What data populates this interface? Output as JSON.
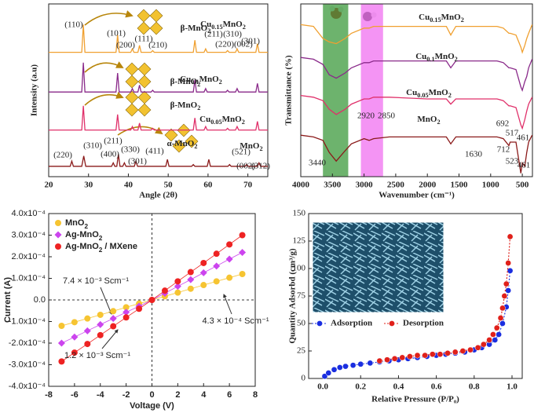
{
  "chart_data": [
    {
      "type": "line",
      "x_label": "Angle (2θ)",
      "y_label": "Intensity (a.u)",
      "xlim": [
        20,
        75
      ],
      "xticks": [
        20,
        30,
        40,
        50,
        60,
        70
      ],
      "ylim": [
        0,
        100
      ],
      "series": [
        {
          "name": "MnO2",
          "color": "#8b1a1a",
          "x": [
            20,
            25.4,
            25.8,
            26.2,
            28.3,
            28.8,
            29.3,
            35.8,
            36.2,
            36.6,
            37.1,
            37.5,
            37.9,
            38.6,
            39,
            39.4,
            41.5,
            41.9,
            42.3,
            49.4,
            49.8,
            50.2,
            55.9,
            56.3,
            56.7,
            59.8,
            60.2,
            60.6,
            65,
            65.4,
            65.8,
            69.3,
            69.7,
            70.1,
            72.4,
            72.8,
            73.2,
            75
          ],
          "values": [
            6,
            6,
            9,
            6,
            6,
            12,
            6,
            6,
            8,
            6,
            6,
            13,
            6,
            6,
            8,
            6,
            6,
            9,
            6,
            6,
            10,
            6,
            6,
            7,
            6,
            6,
            10,
            6,
            6,
            7,
            6,
            6,
            7,
            6,
            6,
            8,
            6,
            6
          ]
        },
        {
          "name": "Cu0.05MnO2",
          "color": "#e0306a",
          "x": [
            20,
            28.3,
            28.7,
            29.1,
            36.9,
            37.3,
            37.7,
            40.6,
            41,
            41.4,
            42.4,
            42.8,
            43.2,
            45.7,
            46.1,
            46.5,
            56.3,
            56.7,
            57.1,
            59,
            59.4,
            59.8,
            64.5,
            64.9,
            65.3,
            66.9,
            67.3,
            67.7,
            72,
            72.4,
            72.8,
            75
          ],
          "values": [
            27,
            27,
            41,
            27,
            27,
            36,
            27,
            27,
            29,
            27,
            27,
            31,
            27,
            27,
            28,
            27,
            27,
            34,
            27,
            27,
            29,
            27,
            27,
            28,
            27,
            27,
            29,
            27,
            27,
            32,
            27,
            27
          ]
        },
        {
          "name": "Cu0.1MnO2",
          "color": "#8a2a8a",
          "x": [
            20,
            28.3,
            28.7,
            29.1,
            36.9,
            37.3,
            37.7,
            40.6,
            41,
            41.4,
            42.4,
            42.8,
            43.2,
            45.7,
            46.1,
            46.5,
            56.3,
            56.7,
            57.1,
            59,
            59.4,
            59.8,
            64.5,
            64.9,
            65.3,
            66.9,
            67.3,
            67.7,
            72,
            72.4,
            72.8,
            75
          ],
          "values": [
            49,
            49,
            66,
            49,
            49,
            60,
            49,
            49,
            51,
            49,
            49,
            53,
            49,
            49,
            50,
            49,
            49,
            56,
            49,
            49,
            51,
            49,
            49,
            50,
            49,
            49,
            51,
            49,
            49,
            54,
            49,
            49
          ]
        },
        {
          "name": "Cu0.15MnO2",
          "color": "#f0a030",
          "x": [
            20,
            28.3,
            28.7,
            29.1,
            36.9,
            37.3,
            37.7,
            40.6,
            41,
            41.4,
            42.4,
            42.8,
            43.2,
            45.7,
            46.1,
            46.5,
            56.3,
            56.7,
            57.1,
            59,
            59.4,
            59.8,
            64.5,
            64.9,
            65.3,
            66.9,
            67.3,
            67.7,
            72,
            72.4,
            72.8,
            75
          ],
          "values": [
            72,
            72,
            88,
            72,
            72,
            82,
            72,
            72,
            74,
            72,
            72,
            76,
            72,
            72,
            73,
            72,
            72,
            79,
            72,
            72,
            74,
            72,
            72,
            73,
            72,
            72,
            74,
            72,
            72,
            77,
            72,
            72
          ]
        }
      ],
      "peak_labels": [
        "(110)",
        "(101)",
        "(200)",
        "(111)",
        "(210)",
        "(211)",
        "(310)",
        "(220)(002)",
        "(301)",
        "(310)",
        "(220)",
        "(211)",
        "(400)",
        "(330)",
        "(301)",
        "(411)",
        "(521)",
        "(002)",
        "(312)"
      ],
      "annotations": [
        {
          "text": "β-MnO2"
        },
        {
          "text": "β-MnO2"
        },
        {
          "text": "β-MnO2"
        },
        {
          "text": "α-MnO2"
        },
        {
          "text": "Cu0.15MnO2",
          "color": "#f0a030"
        },
        {
          "text": "Cu0.1MnO2",
          "color": "#8a2a8a"
        },
        {
          "text": "Cu0.05MnO2",
          "color": "#e0306a"
        },
        {
          "text": "MnO2",
          "color": "#c0201a"
        }
      ]
    },
    {
      "type": "line",
      "x_label": "Wavenumber (cm⁻¹)",
      "y_label": "Transmittance (%)",
      "xlim": [
        4000,
        340
      ],
      "xticks": [
        4000,
        3500,
        3000,
        2500,
        2000,
        1500,
        1000,
        500
      ],
      "ylim": [
        0,
        100
      ],
      "bands": [
        {
          "from": 3650,
          "to": 3250,
          "color": "#3c9a3c"
        },
        {
          "from": 3050,
          "to": 2700,
          "color": "#f070f0"
        }
      ],
      "x": [
        4000,
        3800,
        3650,
        3550,
        3440,
        3300,
        3200,
        3000,
        2920,
        2850,
        2600,
        2000,
        1700,
        1630,
        1550,
        1200,
        900,
        800,
        712,
        692,
        600,
        523,
        500,
        461,
        430,
        400,
        345
      ],
      "series": [
        {
          "name": "MnO2",
          "color": "#8b1a1a",
          "values": [
            24,
            23,
            21,
            14,
            9,
            15,
            19,
            22,
            21,
            22,
            23,
            23,
            23,
            19,
            23,
            23,
            23,
            22,
            18,
            20,
            20,
            2,
            8,
            6,
            14,
            20,
            24
          ]
        },
        {
          "name": "Cu0.05MnO2",
          "color": "#e0306a",
          "values": [
            47,
            46,
            44,
            39,
            36,
            39,
            42,
            45,
            45,
            46,
            46,
            45,
            45,
            42,
            45,
            45,
            45,
            44,
            41,
            41,
            40,
            30,
            28,
            33,
            38,
            42,
            46
          ]
        },
        {
          "name": "Cu0.1MnO2",
          "color": "#8a2a8a",
          "values": [
            69,
            68,
            65,
            59,
            57,
            60,
            63,
            66,
            66,
            67,
            67,
            67,
            67,
            63,
            67,
            67,
            67,
            66,
            63,
            63,
            62,
            52,
            50,
            55,
            58,
            63,
            68
          ]
        },
        {
          "name": "Cu0.15MnO2",
          "color": "#f0a030",
          "values": [
            88,
            87,
            80,
            78,
            77,
            80,
            83,
            86,
            86,
            87,
            87,
            87,
            87,
            82,
            87,
            87,
            87,
            86,
            83,
            83,
            82,
            75,
            72,
            76,
            80,
            83,
            88
          ]
        }
      ],
      "annotations": [
        {
          "text": "Cu0.15MnO2",
          "color": "#f0a030"
        },
        {
          "text": "Cu0.1MnO2",
          "color": "#8a2a8a"
        },
        {
          "text": "Cu0.05MnO2",
          "color": "#e0306a"
        },
        {
          "text": "MnO2",
          "color": "#c0201a"
        }
      ],
      "peak_labels": [
        "3440",
        "2920",
        "2850",
        "1630",
        "692",
        "517",
        "461",
        "712",
        "523",
        "461"
      ]
    },
    {
      "type": "line",
      "x_label": "Voltage (V)",
      "y_label": "Current (A)",
      "legend": "upper left",
      "zero_lines": true,
      "xlim": [
        -8,
        8
      ],
      "xticks": [
        -8,
        -6,
        -4,
        -2,
        0,
        2,
        4,
        6,
        8
      ],
      "ylim": [
        -0.0004,
        0.0004
      ],
      "yticks": [
        {
          "value": -0.0004,
          "label": "-4.0x10⁻⁴"
        },
        {
          "value": -0.0003,
          "label": "-3.0x10⁻⁴"
        },
        {
          "value": -0.0002,
          "label": "-2.0x10⁻⁴"
        },
        {
          "value": -0.0001,
          "label": "-1.0x10⁻⁴"
        },
        {
          "value": 0,
          "label": "0.0"
        },
        {
          "value": 0.0001,
          "label": "1.0x10⁻⁴"
        },
        {
          "value": 0.0002,
          "label": "2.0x10⁻⁴"
        },
        {
          "value": 0.0003,
          "label": "3.0x10⁻⁴"
        },
        {
          "value": 0.0004,
          "label": "4.0x10⁻⁴"
        }
      ],
      "x": [
        -7,
        -6,
        -5,
        -4,
        -3,
        -2,
        -1,
        0,
        1,
        2,
        3,
        4,
        5,
        6,
        7
      ],
      "series": [
        {
          "name": "MnO2",
          "color": "#f6c431",
          "marker": "circle",
          "values": [
            -0.00012,
            -0.000103,
            -8.6e-05,
            -6.9e-05,
            -5.2e-05,
            -3.4e-05,
            -1.7e-05,
            0,
            1.7e-05,
            3.4e-05,
            5.2e-05,
            6.9e-05,
            8.6e-05,
            0.000103,
            0.00012
          ]
        },
        {
          "name": "Ag-MnO2",
          "color": "#cc44ee",
          "marker": "diamond",
          "values": [
            -0.0002,
            -0.000172,
            -0.000143,
            -0.000114,
            -8.6e-05,
            -5.7e-05,
            -2.9e-05,
            0,
            3.1e-05,
            6.3e-05,
            9.4e-05,
            0.000126,
            0.000157,
            0.000189,
            0.00022
          ]
        },
        {
          "name": "Ag-MnO2 / MXene",
          "color": "#ee2222",
          "marker": "circle",
          "values": [
            -0.000285,
            -0.000244,
            -0.000204,
            -0.000163,
            -0.000122,
            -8.1e-05,
            -4.1e-05,
            0,
            4.3e-05,
            8.6e-05,
            0.000129,
            0.000171,
            0.000214,
            0.000257,
            0.0003
          ]
        }
      ],
      "annotations": [
        {
          "text": "7.4 × 10⁻³ Scm⁻¹"
        },
        {
          "text": "4.3 × 10⁻⁴ Scm⁻¹"
        },
        {
          "text": "1.2 × 10⁻³ Scm⁻¹"
        }
      ]
    },
    {
      "type": "line",
      "x_label": "Relative Pressure (P/P₀)",
      "y_label": "Quantity Adsorbd (cm³/g)",
      "legend": "lower right",
      "xlim": [
        -0.075,
        1.054
      ],
      "xticks": [
        {
          "value": 0,
          "label": "0.0"
        },
        0.2,
        0.4,
        0.6,
        0.8,
        {
          "value": 1,
          "label": "1.0"
        }
      ],
      "ylim": [
        0,
        150
      ],
      "yticks": [
        0,
        25,
        50,
        75,
        100,
        125,
        150
      ],
      "series": [
        {
          "name": "Adsorption",
          "color": "#1a2ee0",
          "marker": "circle",
          "line_style": "dotted",
          "x": [
            0.01,
            0.03,
            0.06,
            0.09,
            0.12,
            0.16,
            0.2,
            0.25,
            0.3,
            0.35,
            0.4,
            0.45,
            0.5,
            0.55,
            0.6,
            0.65,
            0.7,
            0.75,
            0.8,
            0.84,
            0.88,
            0.91,
            0.93,
            0.95,
            0.97,
            0.98,
            0.99
          ],
          "values": [
            2,
            5,
            8,
            10,
            11,
            12,
            13,
            14,
            15,
            16,
            17,
            18,
            19,
            20,
            21,
            22,
            23,
            24,
            26,
            28,
            31,
            35,
            40,
            50,
            65,
            80,
            98
          ]
        },
        {
          "name": "Desorption",
          "color": "#e0201a",
          "marker": "circle",
          "line_style": "dotted",
          "x": [
            0.99,
            0.98,
            0.97,
            0.96,
            0.95,
            0.94,
            0.92,
            0.9,
            0.88,
            0.85,
            0.82,
            0.78,
            0.74,
            0.7,
            0.66,
            0.62,
            0.58,
            0.54,
            0.5,
            0.46,
            0.42,
            0.38,
            0.34,
            0.3
          ],
          "values": [
            129,
            105,
            86,
            75,
            64,
            55,
            46,
            40,
            35,
            31,
            28,
            26,
            25,
            24,
            23,
            22,
            22,
            21,
            21,
            20,
            19,
            18,
            17,
            16
          ]
        }
      ]
    }
  ]
}
